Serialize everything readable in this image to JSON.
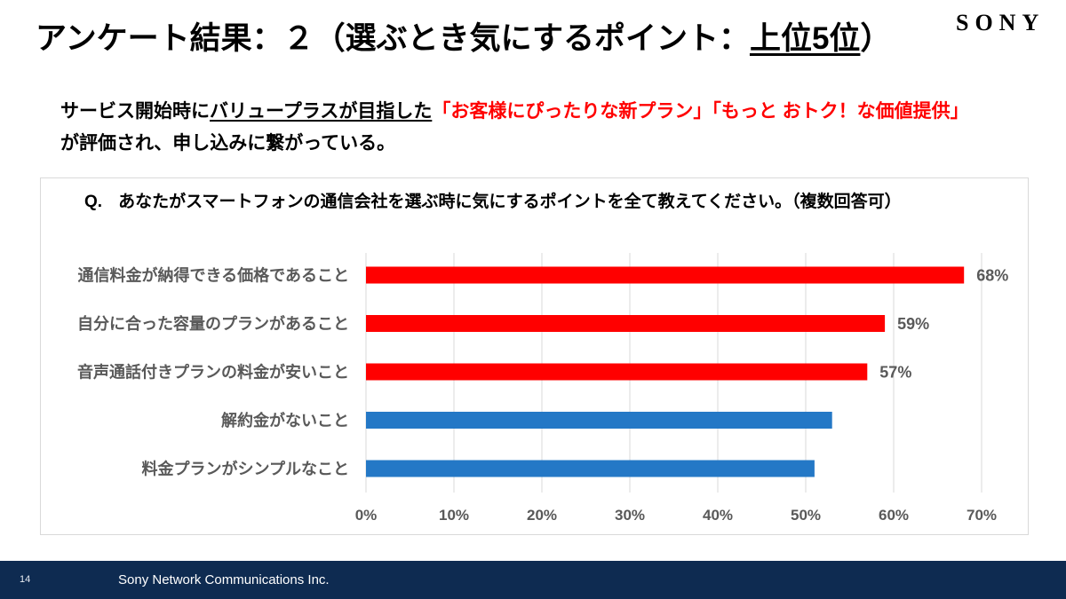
{
  "header": {
    "title_prefix": "アンケート結果：２（選ぶとき気にするポイント：",
    "title_highlight": "上位5位",
    "title_suffix": "）",
    "logo": "SONY"
  },
  "summary": {
    "line1_prefix": "サービス開始時に",
    "line1_underlined": "バリュープラスが目指した",
    "line1_red": "「お客様にぴったりな新プラン」「もっと おトク！な価値提供」",
    "line2": "が評価され、申し込みに繋がっている。"
  },
  "question": {
    "label": "Q.",
    "text": "あなたがスマートフォンの通信会社を選ぶ時に気にするポイントを全て教えてください。（複数回答可）"
  },
  "chart_data": {
    "type": "bar",
    "orientation": "horizontal",
    "categories": [
      "通信料金が納得できる価格であること",
      "自分に合った容量のプランがあること",
      "音声通話付きプランの料金が安いこと",
      "解約金がないこと",
      "料金プランがシンプルなこと"
    ],
    "values": [
      68,
      59,
      57,
      53,
      51
    ],
    "data_labels": [
      "68%",
      "59%",
      "57%",
      "",
      ""
    ],
    "bar_colors": [
      "#FF0000",
      "#FF0000",
      "#FF0000",
      "#2478C6",
      "#2478C6"
    ],
    "xlim": [
      0,
      70
    ],
    "x_ticks": [
      0,
      10,
      20,
      30,
      40,
      50,
      60,
      70
    ],
    "x_tick_labels": [
      "0%",
      "10%",
      "20%",
      "30%",
      "40%",
      "50%",
      "60%",
      "70%"
    ],
    "grid": true
  },
  "footer": {
    "page_number": "14",
    "company": "Sony Network Communications Inc."
  },
  "colors": {
    "highlight_red": "#FF0000",
    "bar_blue": "#2478C6",
    "footer_navy": "#0E2B51"
  }
}
